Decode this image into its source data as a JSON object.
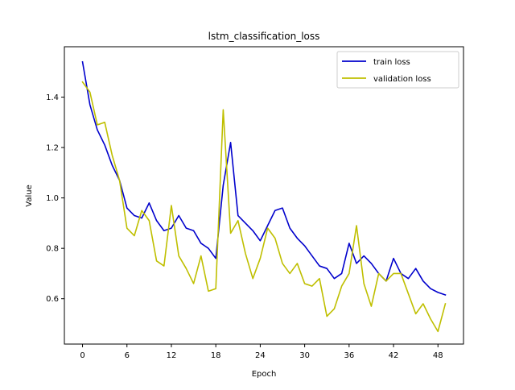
{
  "chart_data": {
    "type": "line",
    "title": "lstm_classification_loss",
    "xlabel": "Epoch",
    "ylabel": "Value",
    "xlim": [
      -2.45,
      51.45
    ],
    "ylim": [
      0.42,
      1.6
    ],
    "xticks": [
      0,
      6,
      12,
      18,
      24,
      30,
      36,
      42,
      48
    ],
    "yticks": [
      0.6,
      0.8,
      1.0,
      1.2,
      1.4
    ],
    "ytick_labels": [
      "0.6",
      "0.8",
      "1.0",
      "1.2",
      "1.4"
    ],
    "grid": false,
    "legend_position": "upper-right",
    "x": [
      0,
      1,
      2,
      3,
      4,
      5,
      6,
      7,
      8,
      9,
      10,
      11,
      12,
      13,
      14,
      15,
      16,
      17,
      18,
      19,
      20,
      21,
      22,
      23,
      24,
      25,
      26,
      27,
      28,
      29,
      30,
      31,
      32,
      33,
      34,
      35,
      36,
      37,
      38,
      39,
      40,
      41,
      42,
      43,
      44,
      45,
      46,
      47,
      48,
      49
    ],
    "series": [
      {
        "name": "train loss",
        "color": "#0000cc",
        "values": [
          1.54,
          1.37,
          1.27,
          1.21,
          1.13,
          1.07,
          0.96,
          0.93,
          0.92,
          0.98,
          0.91,
          0.87,
          0.88,
          0.93,
          0.88,
          0.87,
          0.82,
          0.8,
          0.76,
          1.05,
          1.22,
          0.93,
          0.9,
          0.87,
          0.83,
          0.89,
          0.95,
          0.96,
          0.88,
          0.84,
          0.81,
          0.77,
          0.73,
          0.72,
          0.68,
          0.7,
          0.82,
          0.74,
          0.77,
          0.74,
          0.7,
          0.67,
          0.76,
          0.7,
          0.68,
          0.72,
          0.67,
          0.64,
          0.625,
          0.615
        ]
      },
      {
        "name": "validation loss",
        "color": "#bfbf00",
        "values": [
          1.46,
          1.42,
          1.29,
          1.3,
          1.17,
          1.07,
          0.88,
          0.85,
          0.95,
          0.91,
          0.75,
          0.73,
          0.97,
          0.77,
          0.72,
          0.66,
          0.77,
          0.63,
          0.64,
          1.35,
          0.86,
          0.91,
          0.78,
          0.68,
          0.76,
          0.88,
          0.84,
          0.74,
          0.7,
          0.74,
          0.66,
          0.65,
          0.68,
          0.53,
          0.56,
          0.65,
          0.7,
          0.89,
          0.66,
          0.57,
          0.7,
          0.67,
          0.7,
          0.7,
          0.62,
          0.54,
          0.58,
          0.52,
          0.47,
          0.58
        ]
      }
    ]
  }
}
